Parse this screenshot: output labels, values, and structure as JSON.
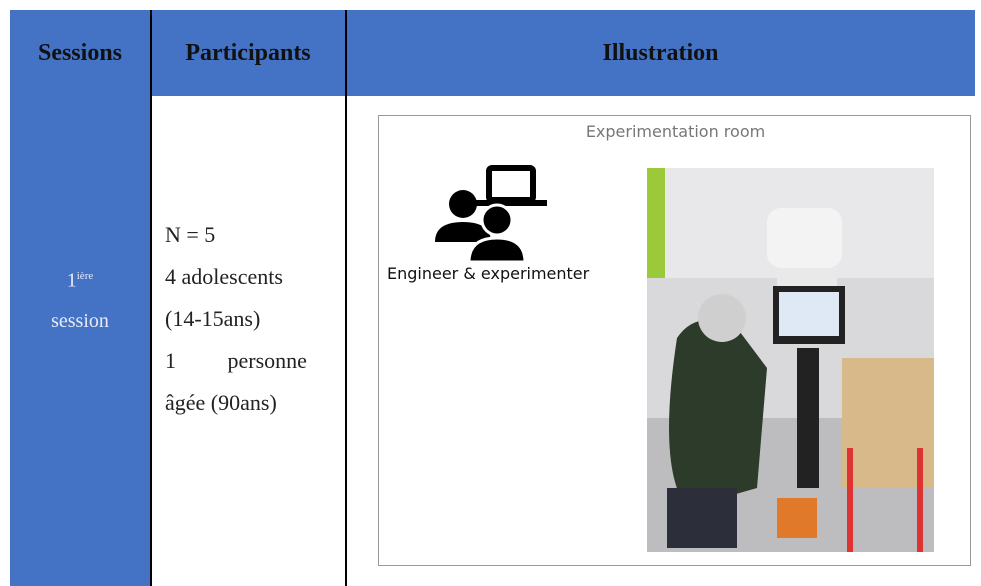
{
  "table": {
    "headers": [
      "Sessions",
      "Participants",
      "Illustration"
    ],
    "rows": [
      {
        "session": {
          "number": "1",
          "suffix": "ière",
          "word": "session"
        },
        "participants": [
          "N = 5",
          "4 adolescents",
          "(14-15ans)",
          "1 personne",
          "âgée (90ans)"
        ],
        "illustration": {
          "room_label": "Experimentation room",
          "icon_label": "Engineer & experimenter"
        }
      }
    ]
  }
}
